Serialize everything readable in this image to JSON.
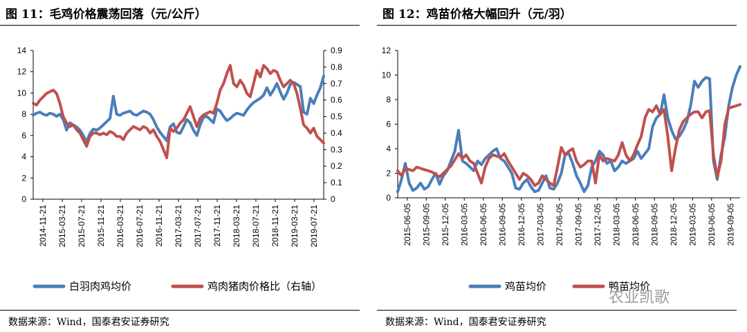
{
  "watermark": "农业凯歌",
  "chart_data": [
    {
      "type": "line",
      "title": "图 11：毛鸡价格震荡回落（元/公斤）",
      "source": "数据来源：Wind，国泰君安证券研究",
      "x_tick_labels": [
        "2014-11-21",
        "2015-03-21",
        "2015-07-21",
        "2015-11-21",
        "2016-03-21",
        "2016-07-21",
        "2016-11-21",
        "2017-03-21",
        "2017-07-21",
        "2017-11-21",
        "2018-03-21",
        "2018-07-21",
        "2018-11-21",
        "2019-03-21",
        "2019-07-21"
      ],
      "y_ticks": [
        "0",
        "2",
        "4",
        "6",
        "8",
        "10",
        "12",
        "14"
      ],
      "y2_ticks": [
        "0",
        "0.1",
        "0.2",
        "0.3",
        "0.4",
        "0.5",
        "0.6",
        "0.7",
        "0.8",
        "0.9"
      ],
      "ylim": [
        0,
        14
      ],
      "y2lim": [
        0,
        0.9
      ],
      "grid": false,
      "legend": "bottom",
      "series": [
        {
          "name": "白羽肉鸡均价",
          "axis": "left",
          "color": "#4a7ebb",
          "values": [
            7.9,
            8.1,
            8.2,
            8.0,
            7.9,
            8.1,
            8.0,
            7.8,
            8.0,
            7.5,
            6.5,
            7.2,
            7.0,
            6.8,
            6.5,
            6.0,
            5.4,
            6.2,
            6.6,
            6.5,
            6.7,
            7.0,
            7.3,
            7.6,
            9.7,
            8.0,
            7.9,
            8.1,
            8.2,
            8.3,
            8.0,
            7.9,
            8.1,
            8.3,
            8.2,
            8.0,
            7.5,
            6.8,
            6.3,
            5.9,
            5.5,
            6.8,
            7.1,
            6.3,
            6.2,
            6.8,
            7.5,
            7.2,
            6.5,
            6.0,
            7.0,
            7.7,
            7.8,
            7.5,
            7.2,
            8.5,
            8.3,
            7.8,
            7.4,
            7.6,
            7.9,
            8.1,
            8.0,
            7.9,
            8.4,
            8.8,
            9.1,
            9.3,
            9.5,
            9.8,
            10.5,
            9.8,
            10.3,
            10.9,
            10.1,
            9.4,
            10.0,
            10.8,
            11.0,
            10.8,
            10.6,
            8.2,
            8.0,
            9.5,
            9.0,
            9.8,
            10.5,
            11.6
          ]
        },
        {
          "name": "鸡肉猪肉价格比（右轴）",
          "axis": "right",
          "color": "#c0504d",
          "values": [
            0.58,
            0.57,
            0.6,
            0.62,
            0.64,
            0.65,
            0.66,
            0.64,
            0.58,
            0.5,
            0.46,
            0.44,
            0.45,
            0.42,
            0.4,
            0.36,
            0.32,
            0.38,
            0.4,
            0.4,
            0.39,
            0.4,
            0.39,
            0.41,
            0.4,
            0.38,
            0.38,
            0.36,
            0.4,
            0.42,
            0.44,
            0.43,
            0.42,
            0.44,
            0.43,
            0.4,
            0.42,
            0.38,
            0.35,
            0.3,
            0.25,
            0.43,
            0.41,
            0.43,
            0.46,
            0.48,
            0.52,
            0.56,
            0.5,
            0.44,
            0.49,
            0.51,
            0.52,
            0.53,
            0.52,
            0.58,
            0.66,
            0.7,
            0.76,
            0.81,
            0.7,
            0.68,
            0.72,
            0.69,
            0.64,
            0.62,
            0.7,
            0.78,
            0.74,
            0.81,
            0.79,
            0.76,
            0.78,
            0.77,
            0.72,
            0.68,
            0.7,
            0.72,
            0.7,
            0.64,
            0.55,
            0.45,
            0.43,
            0.4,
            0.43,
            0.38,
            0.36,
            0.34
          ]
        }
      ]
    },
    {
      "type": "line",
      "title": "图 12：鸡苗价格大幅回升（元/羽）",
      "source": "数据来源：Wind，国泰君安证券研究",
      "x_tick_labels": [
        "2015-06-05",
        "2015-09-05",
        "2015-12-05",
        "2016-03-05",
        "2016-06-05",
        "2016-09-05",
        "2016-12-05",
        "2017-03-05",
        "2017-06-05",
        "2017-09-05",
        "2017-12-05",
        "2018-03-05",
        "2018-06-05",
        "2018-09-05",
        "2018-12-05",
        "2019-03-05",
        "2019-06-05",
        "2019-09-05"
      ],
      "y_ticks": [
        "0",
        "2",
        "4",
        "6",
        "8",
        "10",
        "12"
      ],
      "ylim": [
        0,
        12
      ],
      "grid": false,
      "legend": "bottom",
      "series": [
        {
          "name": "鸡苗均价",
          "color": "#4a7ebb",
          "values": [
            0.5,
            1.5,
            2.8,
            1.2,
            0.6,
            0.8,
            1.2,
            0.7,
            0.9,
            1.5,
            2.0,
            1.1,
            1.8,
            2.2,
            3.0,
            3.8,
            5.5,
            3.0,
            2.8,
            2.5,
            2.2,
            3.0,
            2.7,
            3.2,
            3.5,
            3.8,
            4.0,
            3.2,
            3.0,
            2.5,
            2.0,
            0.8,
            0.7,
            1.2,
            1.5,
            0.9,
            0.5,
            0.6,
            1.2,
            1.8,
            0.8,
            0.7,
            1.2,
            2.0,
            3.5,
            3.6,
            2.8,
            1.8,
            1.2,
            0.5,
            1.0,
            2.5,
            3.0,
            3.8,
            3.5,
            2.8,
            3.0,
            2.2,
            2.5,
            3.0,
            2.8,
            3.0,
            3.2,
            3.8,
            3.2,
            3.6,
            4.0,
            5.8,
            6.5,
            6.8,
            8.4,
            6.5,
            5.5,
            4.8,
            5.0,
            5.5,
            6.2,
            7.5,
            9.5,
            9.0,
            9.5,
            9.8,
            9.7,
            3.0,
            1.5,
            3.5,
            5.0,
            7.5,
            9.0,
            10.0,
            10.7
          ]
        },
        {
          "name": "鸭苗均价",
          "color": "#c0504d",
          "values": [
            2.2,
            1.8,
            2.4,
            2.3,
            2.2,
            2.5,
            2.4,
            2.3,
            2.2,
            2.1,
            1.9,
            1.7,
            2.0,
            2.3,
            2.6,
            3.1,
            3.6,
            3.2,
            3.5,
            3.0,
            2.8,
            2.0,
            1.2,
            2.5,
            3.2,
            3.5,
            3.4,
            3.3,
            3.6,
            3.0,
            2.5,
            2.0,
            1.5,
            2.0,
            1.8,
            1.5,
            1.0,
            1.2,
            1.8,
            1.5,
            1.2,
            1.0,
            2.5,
            4.1,
            3.5,
            3.8,
            4.0,
            3.0,
            2.5,
            2.7,
            3.0,
            3.0,
            1.2,
            3.5,
            3.0,
            3.2,
            3.1,
            3.0,
            3.5,
            4.5,
            3.5,
            3.0,
            3.5,
            4.3,
            5.0,
            6.5,
            7.2,
            7.0,
            7.5,
            6.8,
            7.2,
            5.0,
            2.2,
            4.0,
            5.5,
            6.2,
            6.5,
            6.8,
            7.0,
            7.0,
            6.5,
            7.0,
            7.1,
            3.5,
            1.7,
            3.0,
            6.0,
            7.3,
            7.4,
            7.5,
            7.6
          ]
        }
      ]
    }
  ]
}
